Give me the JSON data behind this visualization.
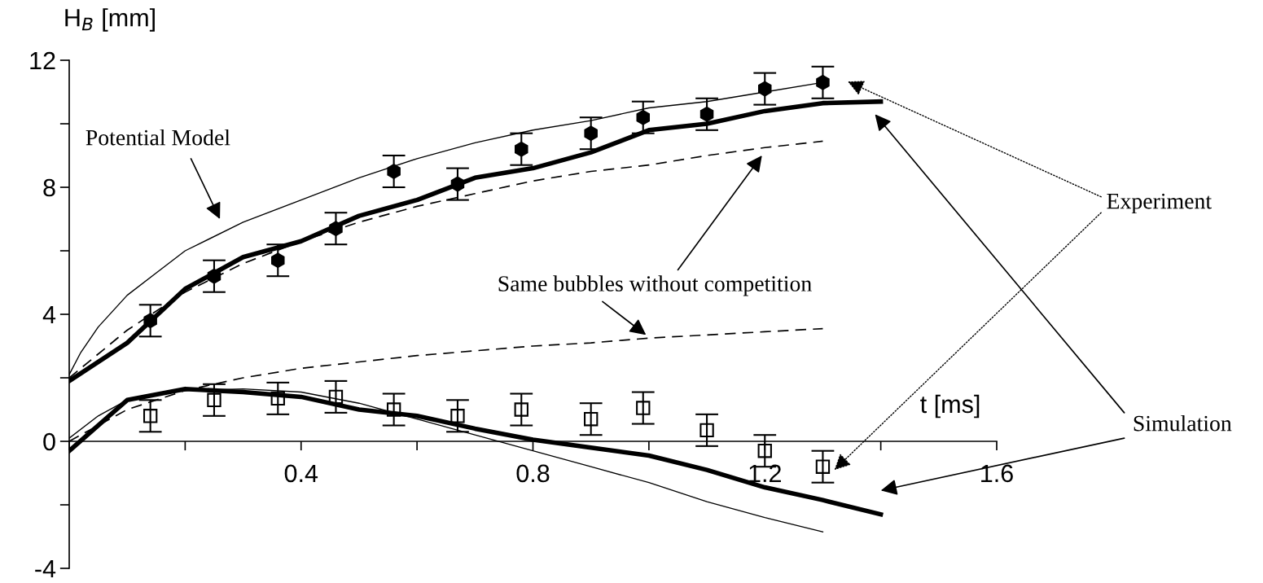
{
  "chart_data": {
    "type": "line",
    "ylabel": "H$_{B}$ [mm]",
    "xlabel": "t [ms]",
    "xlim": [
      0,
      1.6
    ],
    "xticks": [
      {
        "value": 0,
        "label": null
      },
      {
        "value": 0.2,
        "label": null
      },
      0.4,
      {
        "value": 0.6,
        "label": null
      },
      0.8,
      {
        "value": 1.0,
        "label": null
      },
      1.2,
      {
        "value": 1.4,
        "label": null
      },
      1.6
    ],
    "ylim": [
      -4,
      12
    ],
    "yticks": [
      -4,
      {
        "value": -2,
        "label": null
      },
      0,
      {
        "value": 2,
        "label": null
      },
      4,
      {
        "value": 6,
        "label": null
      },
      8,
      {
        "value": 10,
        "label": null
      },
      12
    ],
    "series": [
      {
        "type": "scatter",
        "marker": "circle",
        "color": "#000000",
        "x": [
          0.14,
          0.25,
          0.36,
          0.46,
          0.56,
          0.67,
          0.78,
          0.9,
          0.99,
          1.1,
          1.2,
          1.3
        ],
        "values": [
          3.8,
          5.2,
          5.7,
          6.7,
          8.5,
          8.1,
          9.2,
          9.7,
          10.2,
          10.3,
          11.1,
          11.3
        ],
        "errors": [
          0.5,
          0.5,
          0.5,
          0.5,
          0.5,
          0.5,
          0.5,
          0.5,
          0.5,
          0.5,
          0.5,
          0.5
        ]
      },
      {
        "type": "scatter",
        "marker": "square",
        "color": "#000000",
        "x": [
          0.14,
          0.25,
          0.36,
          0.46,
          0.56,
          0.67,
          0.78,
          0.9,
          0.99,
          1.1,
          1.2,
          1.3
        ],
        "values": [
          0.8,
          1.3,
          1.35,
          1.4,
          1.0,
          0.8,
          1.0,
          0.7,
          1.05,
          0.35,
          -0.3,
          -0.8
        ],
        "errors": [
          0.5,
          0.5,
          0.5,
          0.5,
          0.5,
          0.5,
          0.5,
          0.5,
          0.5,
          0.5,
          0.5,
          0.5
        ]
      },
      {
        "line_style": "solid",
        "color": "#000000",
        "x": [
          0,
          0.1,
          0.2,
          0.3,
          0.4,
          0.5,
          0.6,
          0.7,
          0.8,
          0.9,
          1.0,
          1.1,
          1.2,
          1.3,
          1.4
        ],
        "values": [
          1.9,
          3.1,
          4.8,
          5.8,
          6.3,
          7.1,
          7.6,
          8.3,
          8.6,
          9.1,
          9.8,
          10.0,
          10.4,
          10.65,
          10.7
        ]
      },
      {
        "line_style": "solid",
        "color": "#000000",
        "x": [
          0,
          0.1,
          0.2,
          0.3,
          0.4,
          0.5,
          0.6,
          0.7,
          0.8,
          0.9,
          1.0,
          1.1,
          1.2,
          1.3,
          1.4
        ],
        "values": [
          -0.3,
          1.3,
          1.65,
          1.55,
          1.4,
          1.0,
          0.8,
          0.4,
          0.05,
          -0.2,
          -0.45,
          -0.9,
          -1.45,
          -1.85,
          -2.3
        ]
      },
      {
        "line_style": "solid",
        "color": "#000000",
        "x": [
          0,
          0.02,
          0.05,
          0.1,
          0.15,
          0.2,
          0.3,
          0.4,
          0.5,
          0.6,
          0.7,
          0.8,
          0.9,
          1.0,
          1.1,
          1.2,
          1.3
        ],
        "values": [
          2.1,
          2.8,
          3.6,
          4.6,
          5.3,
          6.0,
          6.9,
          7.6,
          8.3,
          8.9,
          9.4,
          9.8,
          10.1,
          10.5,
          10.7,
          11.0,
          11.3
        ]
      },
      {
        "line_style": "solid",
        "color": "#000000",
        "x": [
          0,
          0.05,
          0.1,
          0.2,
          0.3,
          0.4,
          0.5,
          0.6,
          0.7,
          0.8,
          0.9,
          1.0,
          1.1,
          1.2,
          1.3
        ],
        "values": [
          0.1,
          0.8,
          1.3,
          1.6,
          1.65,
          1.55,
          1.2,
          0.7,
          0.2,
          -0.3,
          -0.8,
          -1.3,
          -1.9,
          -2.4,
          -2.85
        ]
      },
      {
        "line_style": "dashed",
        "color": "#000000",
        "x": [
          0,
          0.1,
          0.2,
          0.3,
          0.4,
          0.5,
          0.6,
          0.7,
          0.8,
          0.9,
          1.0,
          1.1,
          1.2,
          1.3
        ],
        "values": [
          2.0,
          3.5,
          4.7,
          5.6,
          6.3,
          6.9,
          7.4,
          7.8,
          8.2,
          8.5,
          8.7,
          9.0,
          9.25,
          9.45
        ]
      },
      {
        "line_style": "dashed",
        "color": "#000000",
        "x": [
          0,
          0.1,
          0.2,
          0.3,
          0.4,
          0.5,
          0.6,
          0.7,
          0.8,
          0.9,
          1.0,
          1.1,
          1.2,
          1.3
        ],
        "values": [
          0.0,
          1.0,
          1.6,
          2.0,
          2.3,
          2.5,
          2.7,
          2.85,
          3.0,
          3.1,
          3.25,
          3.35,
          3.45,
          3.55
        ]
      }
    ],
    "annotations": [
      "Potential Model",
      "Same bubbles without competition",
      "Experiment",
      "Simulation"
    ]
  }
}
